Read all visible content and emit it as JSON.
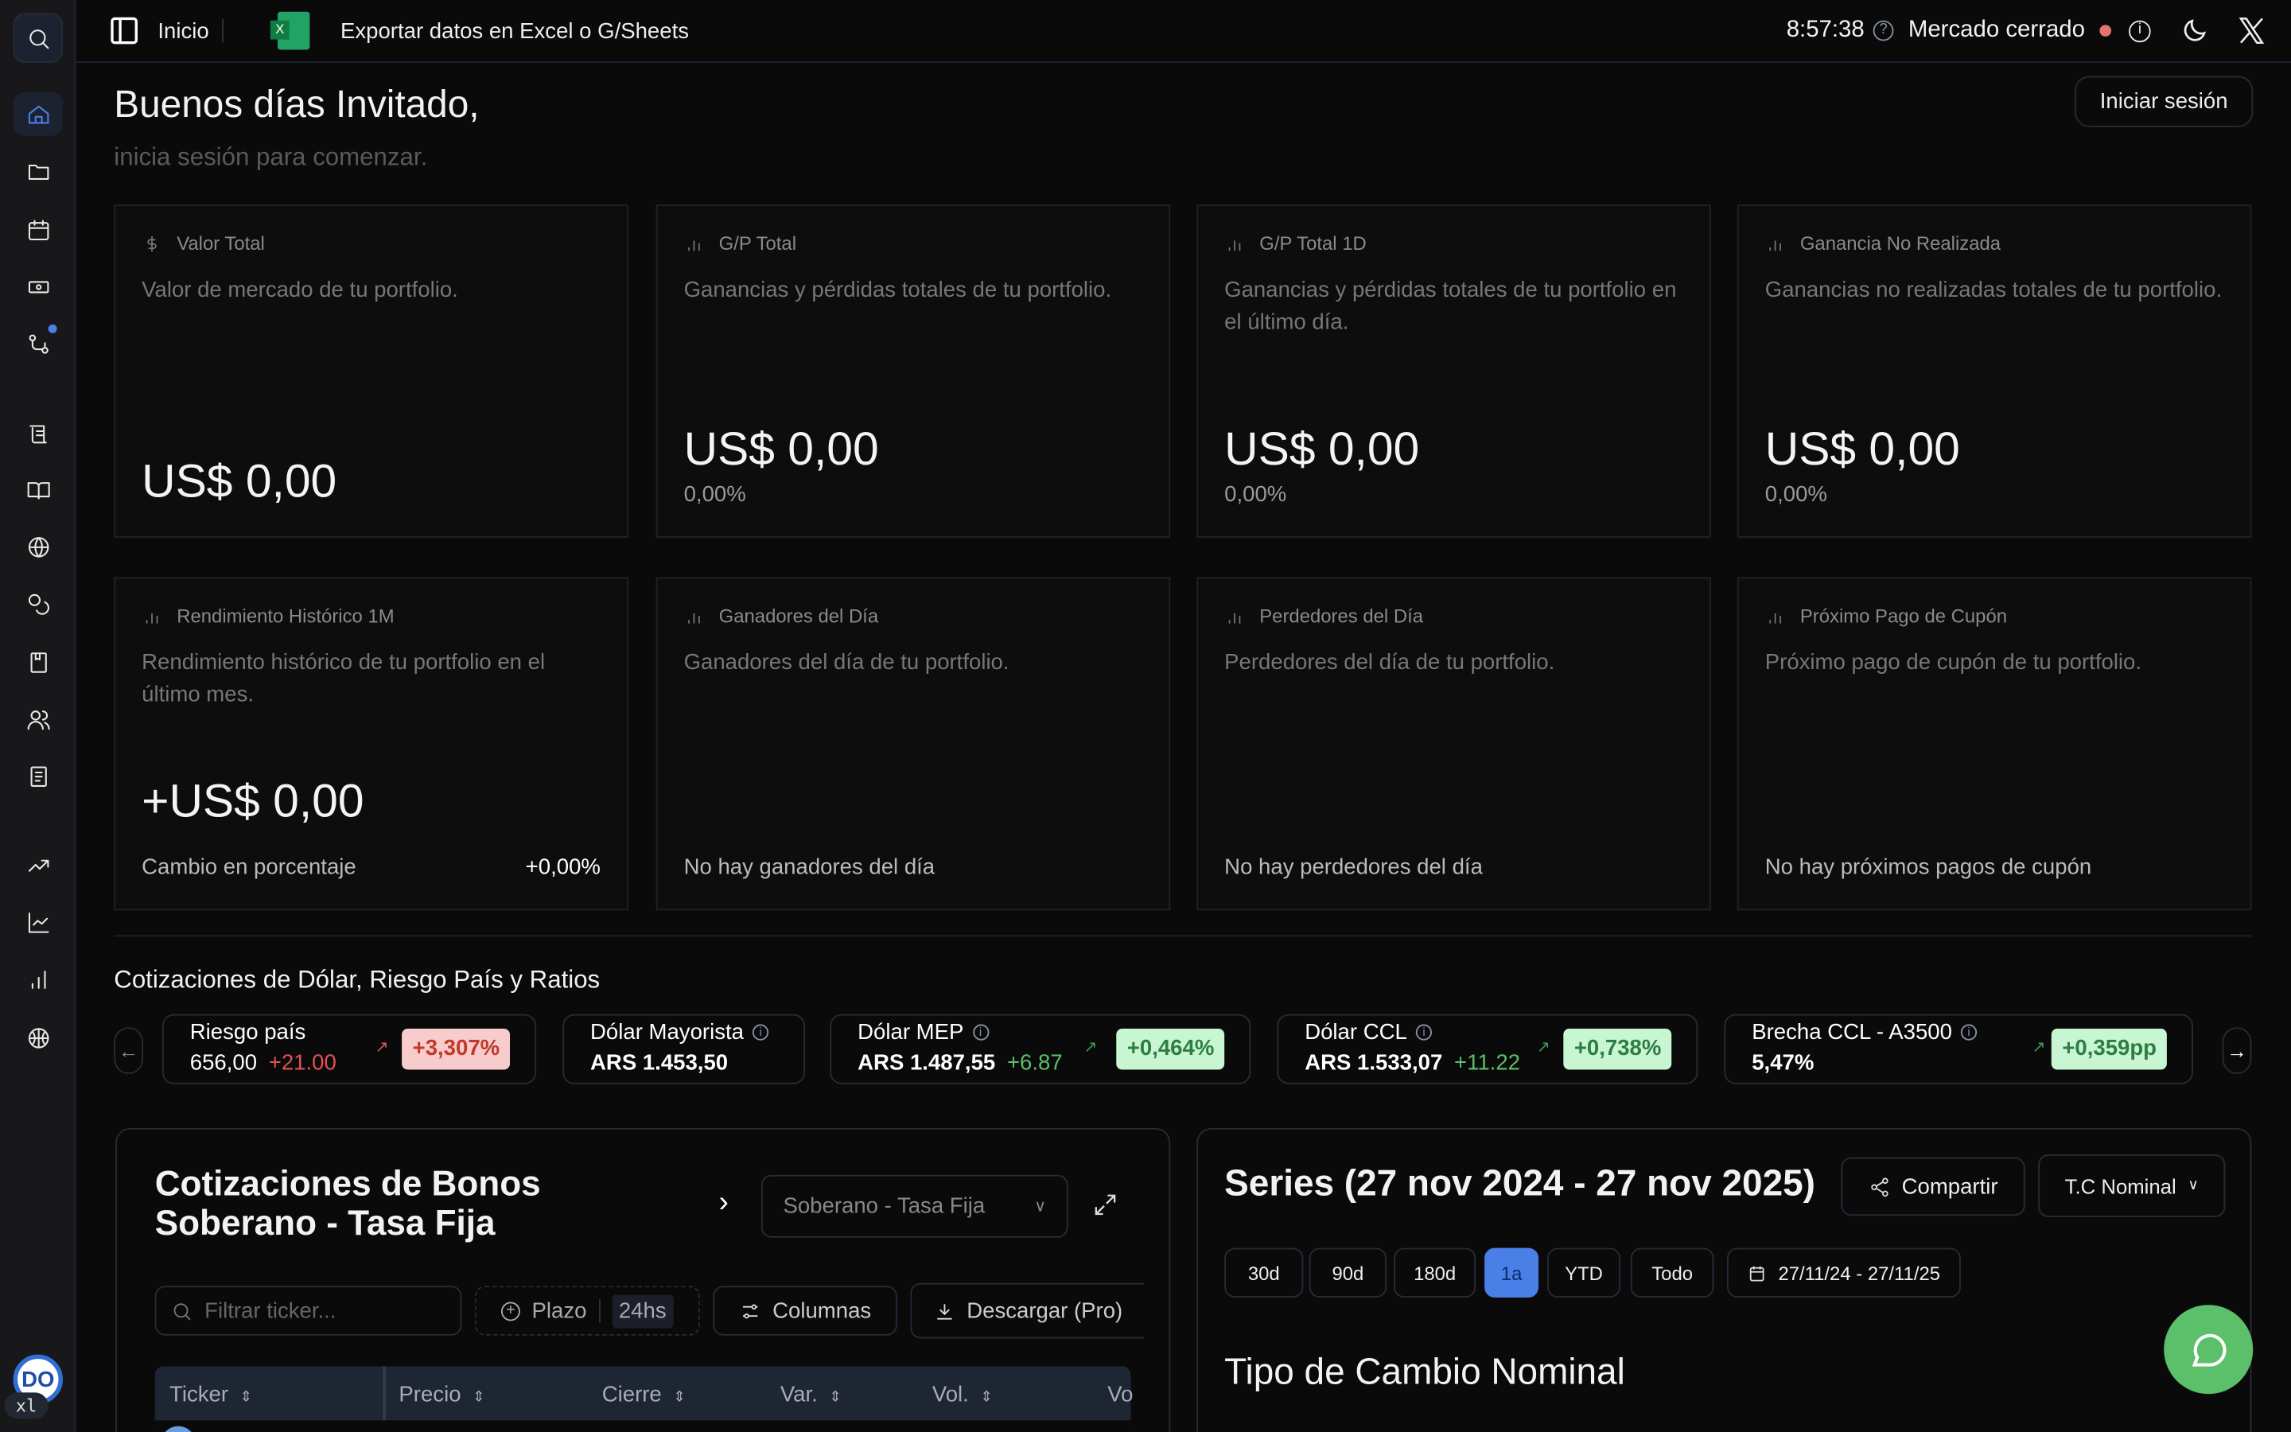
{
  "sidebar": {
    "items": [
      "search",
      "home",
      "folder",
      "calendar",
      "ticket",
      "git-compare",
      "scroll",
      "book-open",
      "globe",
      "coins",
      "notebook",
      "users",
      "file-text",
      "trending-up",
      "line-chart",
      "bar-chart",
      "basketball"
    ],
    "active": "home",
    "logo_text": "xl"
  },
  "topbar": {
    "home_label": "Inicio",
    "export_label": "Exportar datos en Excel o G/Sheets",
    "excel_icon_letter": "X",
    "time": "8:57:38",
    "market_status": "Mercado cerrado",
    "status_color": "#e57373"
  },
  "greeting": {
    "title": "Buenos días Invitado,",
    "subtitle": "inicia sesión para comenzar.",
    "login_label": "Iniciar sesión"
  },
  "cards": [
    {
      "icon": "dollar-icon",
      "title": "Valor Total",
      "desc": "Valor de mercado de tu portfolio.",
      "value": "US$ 0,00"
    },
    {
      "icon": "bar-chart-icon",
      "title": "G/P Total",
      "desc": "Ganancias y pérdidas totales de tu portfolio.",
      "value": "US$ 0,00",
      "percent": "0,00%"
    },
    {
      "icon": "bar-chart-icon",
      "title": "G/P Total 1D",
      "desc": "Ganancias y pérdidas totales de tu portfolio en el último día.",
      "value": "US$ 0,00",
      "percent": "0,00%"
    },
    {
      "icon": "bar-chart-icon",
      "title": "Ganancia No Realizada",
      "desc": "Ganancias no realizadas totales de tu portfolio.",
      "value": "US$ 0,00",
      "percent": "0,00%"
    },
    {
      "icon": "bar-chart-icon",
      "title": "Rendimiento Histórico 1M",
      "desc": "Rendimiento histórico de tu portfolio en el último mes.",
      "value": "+US$ 0,00",
      "change_label": "Cambio en porcentaje",
      "change_value": "+0,00%"
    },
    {
      "icon": "bar-chart-icon",
      "title": "Ganadores del Día",
      "desc": "Ganadores del día de tu portfolio.",
      "empty": "No hay ganadores del día"
    },
    {
      "icon": "bar-chart-icon",
      "title": "Perdedores del Día",
      "desc": "Perdedores del día de tu portfolio.",
      "empty": "No hay perdedores del día"
    },
    {
      "icon": "bar-chart-icon",
      "title": "Próximo Pago de Cupón",
      "desc": "Próximo pago de cupón de tu portfolio.",
      "empty": "No hay próximos pagos de cupón"
    }
  ],
  "quotes": {
    "title": "Cotizaciones de Dólar, Riesgo País y Ratios",
    "items": [
      {
        "name": "Riesgo país",
        "value": "656,00",
        "change": "+21.00",
        "pct": "+3,307%",
        "trend": "up-red"
      },
      {
        "name": "Dólar Mayorista",
        "value": "ARS 1.453,50"
      },
      {
        "name": "Dólar MEP",
        "value": "ARS 1.487,55",
        "change": "+6.87",
        "pct": "+0,464%",
        "trend": "up-green"
      },
      {
        "name": "Dólar CCL",
        "value": "ARS 1.533,07",
        "change": "+11.22",
        "pct": "+0,738%",
        "trend": "up-green"
      },
      {
        "name": "Brecha CCL - A3500",
        "value": "5,47%",
        "pct": "+0,359pp",
        "trend": "up-green"
      }
    ]
  },
  "bonds": {
    "title_line1": "Cotizaciones de Bonos",
    "title_line2": "Soberano - Tasa Fija",
    "select_value": "Soberano - Tasa Fija",
    "filter_placeholder": "Filtrar ticker...",
    "plazo_label": "Plazo",
    "plazo_value": "24hs",
    "columns_label": "Columnas",
    "download_label": "Descargar (Pro)",
    "columns": [
      "Ticker",
      "Precio",
      "Cierre",
      "Var.",
      "Vol.",
      "Vo"
    ]
  },
  "series": {
    "title": "Series (27 nov 2024 - 27 nov 2025)",
    "share_label": "Compartir",
    "select_value": "T.C Nominal",
    "ranges": [
      "30d",
      "90d",
      "180d",
      "1a",
      "YTD",
      "Todo"
    ],
    "active_range": "1a",
    "date_range": "27/11/24 - 27/11/25",
    "subtitle": "Tipo de Cambio Nominal",
    "accent": "#4a7fe8"
  },
  "chat": {
    "color": "#5cbf6a"
  }
}
